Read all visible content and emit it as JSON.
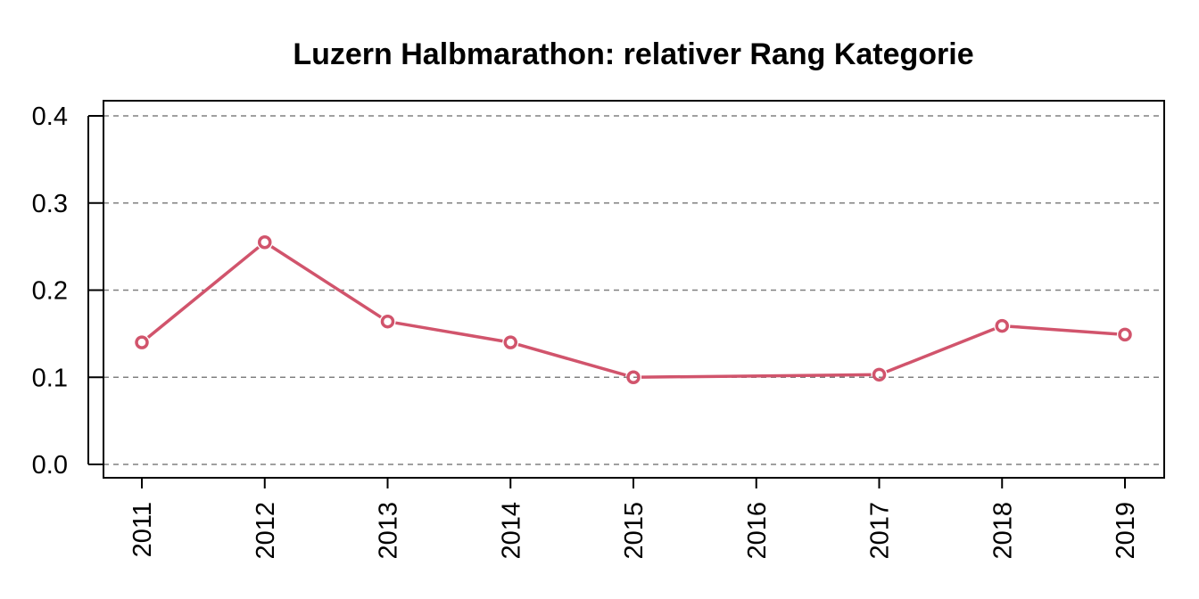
{
  "chart_data": {
    "type": "line",
    "title": "Luzern Halbmarathon: relativer Rang Kategorie",
    "xlabel": "",
    "ylabel": "",
    "x": [
      2011,
      2012,
      2013,
      2014,
      2015,
      2016,
      2017,
      2018,
      2019
    ],
    "x_tick_labels": [
      "2011",
      "2012",
      "2013",
      "2014",
      "2015",
      "2016",
      "2017",
      "2018",
      "2019"
    ],
    "y_ticks": [
      0.0,
      0.1,
      0.2,
      0.3,
      0.4
    ],
    "y_tick_labels": [
      "0.0",
      "0.1",
      "0.2",
      "0.3",
      "0.4"
    ],
    "ylim": [
      0.0,
      0.4
    ],
    "series": [
      {
        "color": "#d1546c",
        "points": [
          {
            "x": 2011,
            "y": 0.14
          },
          {
            "x": 2012,
            "y": 0.255
          },
          {
            "x": 2013,
            "y": 0.164
          },
          {
            "x": 2014,
            "y": 0.14
          },
          {
            "x": 2015,
            "y": 0.1
          },
          {
            "x": 2017,
            "y": 0.103
          },
          {
            "x": 2018,
            "y": 0.159
          },
          {
            "x": 2019,
            "y": 0.149
          }
        ]
      }
    ],
    "grid": "horizontal-dashed",
    "grid_color": "#808080",
    "legend": "none"
  }
}
